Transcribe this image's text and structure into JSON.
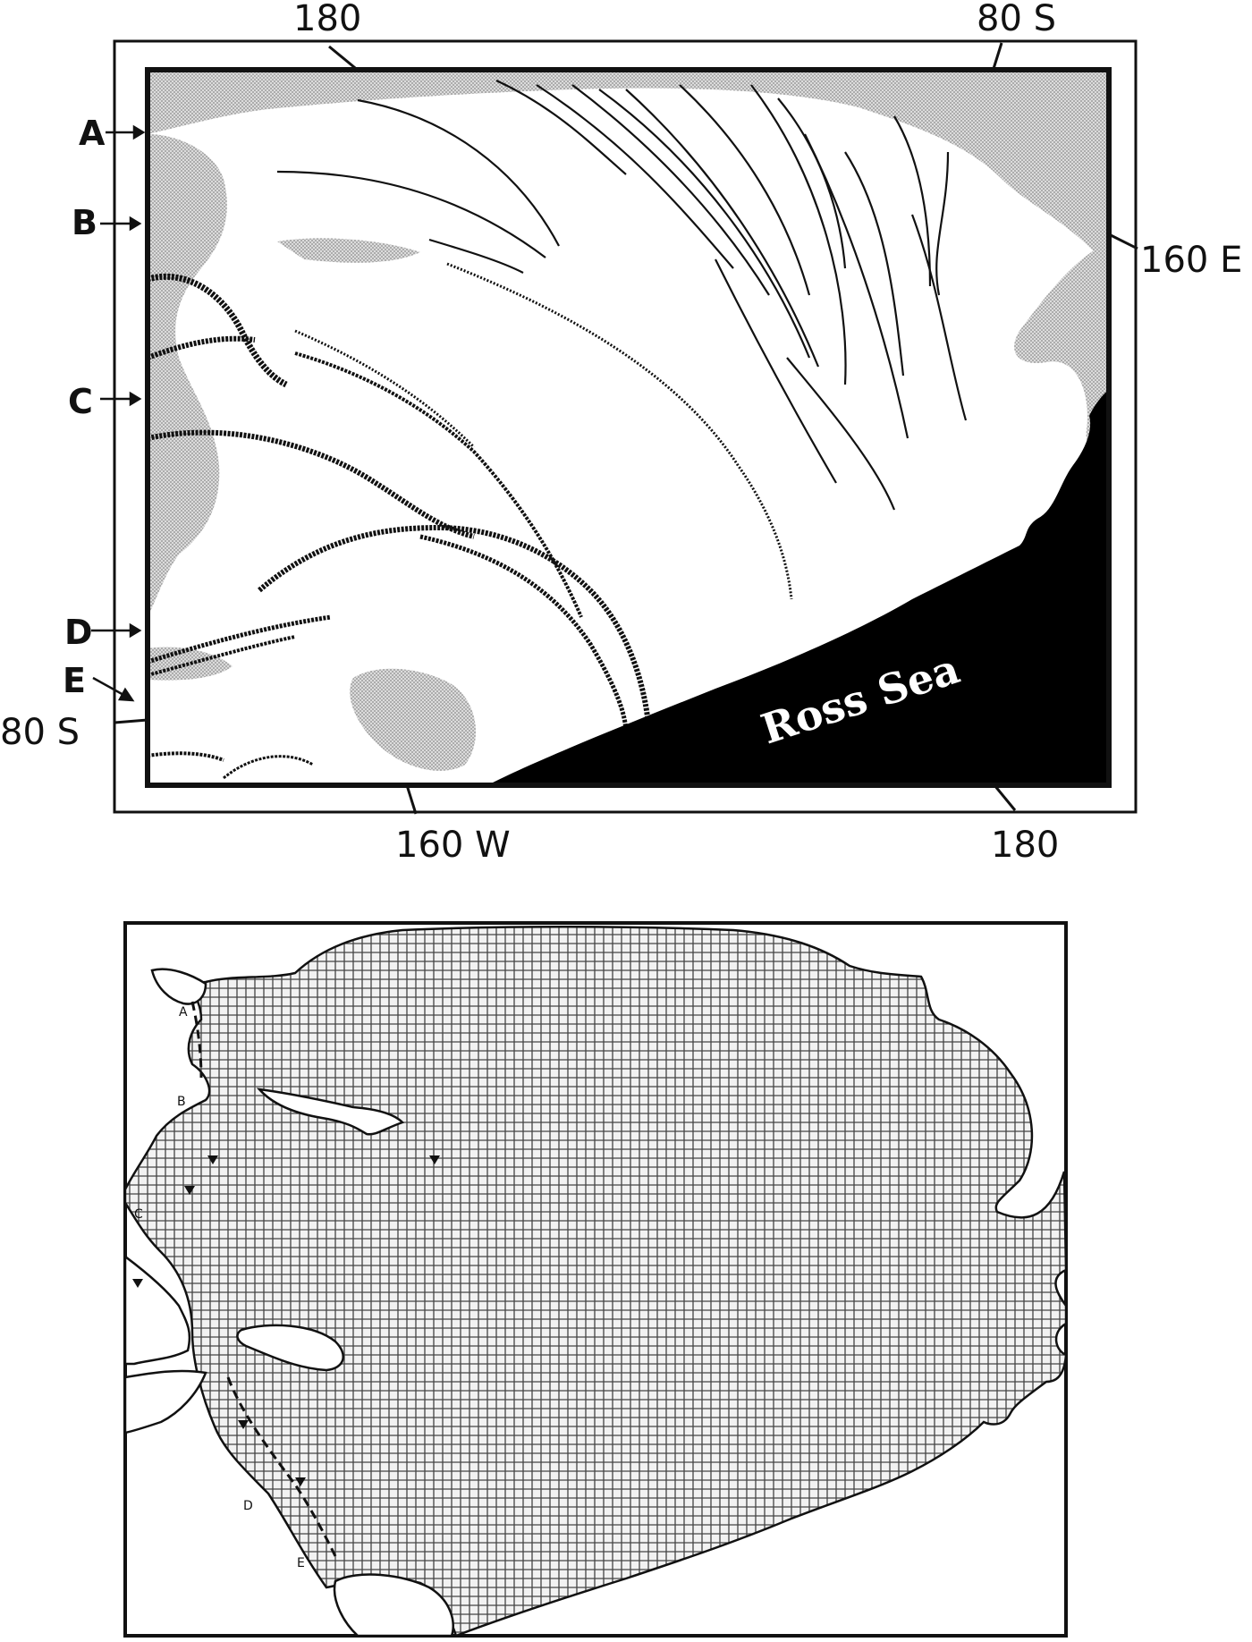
{
  "top_map": {
    "coords": {
      "top_180": "180",
      "top_80s": "80 S",
      "right_160e": "160 E",
      "left_80s": "80 S",
      "bottom_160w": "160 W",
      "bottom_180": "180"
    },
    "stream_labels": [
      "A",
      "B",
      "C",
      "D",
      "E"
    ],
    "sea_label": "Ross Sea"
  },
  "bottom_map": {
    "stream_labels": [
      "A",
      "B",
      "C",
      "D",
      "E"
    ]
  },
  "colors": {
    "ink": "#111111",
    "stipple": "#c8c8c8",
    "grid": "#444444",
    "sea": "#000000"
  }
}
